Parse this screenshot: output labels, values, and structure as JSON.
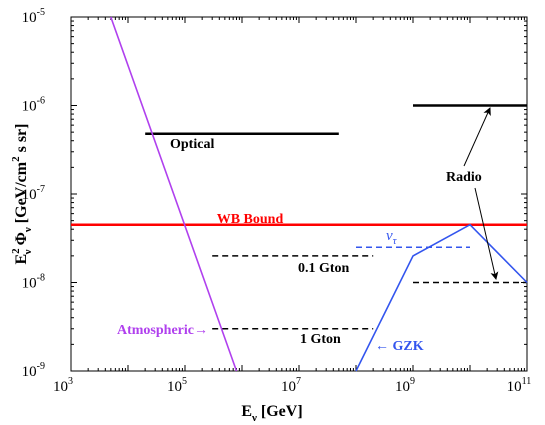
{
  "chart_data": {
    "type": "line",
    "xlabel": {
      "main": "E",
      "sub": "ν",
      "rest": " [GeV]"
    },
    "ylabel": {
      "e": "E",
      "e_sup": "2",
      "e_sub": "ν",
      "phi": " Φ",
      "phi_sub": "ν",
      "units_a": "  [GeV/cm",
      "units_sup": "2",
      "units_b": " s sr]"
    },
    "x_scale": "log",
    "y_scale": "log",
    "xlim": [
      1000,
      100000000000
    ],
    "ylim": [
      1e-09,
      1e-05
    ],
    "x_ticks": [
      {
        "base": "10",
        "exp": "3",
        "value": 1000
      },
      {
        "base": "10",
        "exp": "5",
        "value": 100000
      },
      {
        "base": "10",
        "exp": "7",
        "value": 10000000
      },
      {
        "base": "10",
        "exp": "9",
        "value": 1000000000
      },
      {
        "base": "10",
        "exp": "11",
        "value": 100000000000
      }
    ],
    "y_ticks": [
      {
        "base": "10",
        "exp": "-9",
        "value": 1e-09
      },
      {
        "base": "10",
        "exp": "-8",
        "value": 1e-08
      },
      {
        "base": "10",
        "exp": "-7",
        "value": 1e-07
      },
      {
        "base": "10",
        "exp": "-6",
        "value": 1e-06
      },
      {
        "base": "10",
        "exp": "-5",
        "value": 1e-05
      }
    ],
    "grid": false,
    "series": [
      {
        "label_key": "wb",
        "color": "#ff0000",
        "style": "solid",
        "width": 2.5,
        "points": [
          [
            1000,
            4.5e-08
          ],
          [
            100000000000,
            4.5e-08
          ]
        ]
      },
      {
        "label_key": "optical",
        "color": "#000000",
        "style": "solid",
        "width": 2.5,
        "points": [
          [
            20000,
            4.8e-07
          ],
          [
            50000000,
            4.8e-07
          ]
        ]
      },
      {
        "label_key": "radio_top",
        "color": "#000000",
        "style": "solid",
        "width": 2.5,
        "points": [
          [
            1000000000,
            1e-06
          ],
          [
            100000000000,
            1e-06
          ]
        ]
      },
      {
        "label_key": "radio_bottom",
        "color": "#000000",
        "style": "dashed",
        "width": 1.5,
        "points": [
          [
            1000000000,
            1e-08
          ],
          [
            100000000000,
            1e-08
          ]
        ]
      },
      {
        "label_key": "gton01",
        "color": "#000000",
        "style": "dashed",
        "width": 1.5,
        "points": [
          [
            300000,
            2e-08
          ],
          [
            200000000,
            2e-08
          ]
        ]
      },
      {
        "label_key": "gton1",
        "color": "#000000",
        "style": "dashed",
        "width": 1.5,
        "points": [
          [
            300000,
            3e-09
          ],
          [
            200000000,
            3e-09
          ]
        ]
      },
      {
        "label_key": "nutau",
        "color": "#3355ee",
        "style": "dashed",
        "width": 1.5,
        "points": [
          [
            100000000,
            2.5e-08
          ],
          [
            10000000000,
            2.5e-08
          ]
        ]
      },
      {
        "label_key": "gzk",
        "color": "#3355ee",
        "style": "solid",
        "width": 1.6,
        "points": [
          [
            100000000,
            1e-09
          ],
          [
            1000000000,
            2e-08
          ],
          [
            10000000000,
            4.5e-08
          ],
          [
            100000000000,
            1e-08
          ]
        ]
      },
      {
        "label_key": "atmospheric",
        "color": "#b040ee",
        "style": "solid",
        "width": 1.6,
        "points": [
          [
            5000,
            1e-05
          ],
          [
            800000,
            1e-09
          ]
        ]
      }
    ],
    "annotations": {
      "wb": {
        "text": "WB Bound",
        "color": "#ff0000"
      },
      "optical": {
        "text": "Optical",
        "color": "#000000"
      },
      "radio": {
        "text": "Radio",
        "color": "#000000"
      },
      "gton01": {
        "text": "0.1 Gton",
        "color": "#000000"
      },
      "gton1": {
        "text": "1 Gton",
        "color": "#000000"
      },
      "nutau": {
        "text": "ν",
        "sub": "τ",
        "color": "#3355ee"
      },
      "gzk": {
        "text": "← GZK",
        "color": "#3355ee"
      },
      "atmospheric": {
        "text": "Atmospheric→",
        "color": "#b040ee"
      }
    }
  }
}
